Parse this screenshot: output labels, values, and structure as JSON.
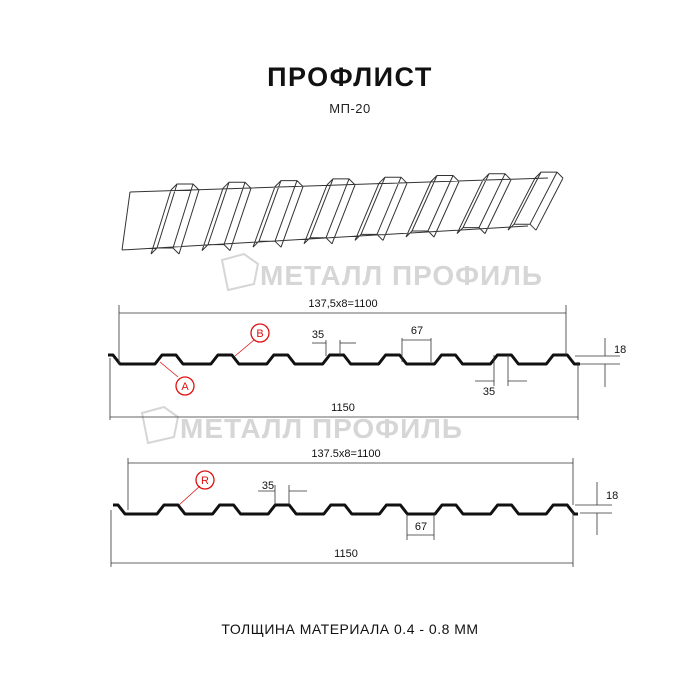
{
  "title": "ПРОФЛИСТ",
  "subtitle": "МП-20",
  "footer": "ТОЛЩИНА МАТЕРИАЛА 0.4 - 0.8 ММ",
  "watermark": "МЕТАЛЛ ПРОФИЛЬ",
  "colors": {
    "profile": "#111111",
    "marker": "#e01010",
    "watermark": "#d6d6d6"
  },
  "diagram1": {
    "pitch_label": "137,5x8=1100",
    "width_label": "1150",
    "top_label": "35",
    "bottom_label": "67",
    "top_label_2": "35",
    "height_label": "18",
    "marker_a": "A",
    "marker_b": "B"
  },
  "diagram2": {
    "pitch_label": "137.5x8=1100",
    "width_label": "1150",
    "top_label": "35",
    "bottom_label": "67",
    "height_label": "18",
    "marker_r": "R"
  }
}
